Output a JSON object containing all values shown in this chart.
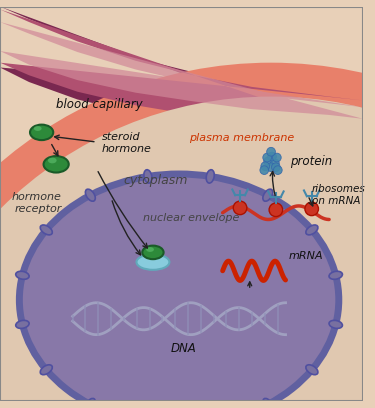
{
  "bg_color": "#e8d0b8",
  "fig_width": 3.75,
  "fig_height": 4.08,
  "dpi": 100,
  "labels": {
    "blood_capillary": "blood capillary",
    "steroid_hormone": "steroid\nhormone",
    "plasma_membrane": "plasma membrane",
    "cytoplasm": "cytoplasm",
    "nuclear_envelope": "nuclear envelope",
    "hormone_receptor": "hormone\nreceptor",
    "protein": "protein",
    "ribosomes_on_mrna": "ribosomes\non mRNA",
    "mrna": "mRNA",
    "dna": "DNA"
  },
  "label_color_red": "#cc3300",
  "label_color_dark": "#1a1a1a",
  "label_color_purple": "#7a3060",
  "capillary_dark": "#8b3060",
  "capillary_mid": "#c06080",
  "capillary_light": "#d898a8",
  "plasma_outer": "#e8806a",
  "plasma_inner": "#f0a090",
  "cytoplasm_color": "#e0c0a8",
  "nucleus_fill": "#9080b0",
  "nucleus_border": "#605090",
  "nuclear_envelope_color": "#706898",
  "dna_color": "#9090b8",
  "mrna_color": "#cc2200",
  "hormone_green_dark": "#1a6028",
  "hormone_green": "#2d8a3a",
  "hormone_green_light": "#50a860",
  "ribosome_red": "#cc3322",
  "protein_teal": "#4488aa",
  "receptor_blue": "#88ccdd"
}
